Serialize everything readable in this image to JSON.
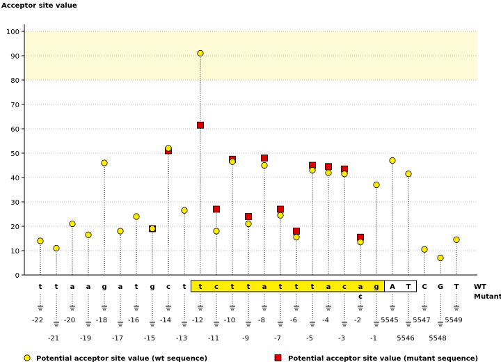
{
  "chart_data": {
    "type": "scatter",
    "ylabel": "Acceptor site value",
    "ylim": [
      0,
      100
    ],
    "yticks": [
      0,
      10,
      20,
      30,
      40,
      50,
      60,
      70,
      80,
      90,
      100
    ],
    "highlight_band": [
      80,
      100
    ],
    "row_labels": {
      "wt": "WT",
      "mutant": "Mutant"
    },
    "positions": [
      {
        "base": "t",
        "index": "-22",
        "wt": 14
      },
      {
        "base": "t",
        "index": "-21",
        "wt": 11
      },
      {
        "base": "a",
        "index": "-20",
        "wt": 21
      },
      {
        "base": "a",
        "index": "-19",
        "wt": 16.5
      },
      {
        "base": "g",
        "index": "-18",
        "wt": 46
      },
      {
        "base": "a",
        "index": "-17",
        "wt": 18
      },
      {
        "base": "t",
        "index": "-16",
        "wt": 24
      },
      {
        "base": "g",
        "index": "-15",
        "wt": 19,
        "mut": 19
      },
      {
        "base": "c",
        "index": "-14",
        "wt": 52,
        "mut": 51
      },
      {
        "base": "t",
        "index": "-13",
        "wt": 26.5
      },
      {
        "base": "t",
        "index": "-12",
        "wt": 91,
        "mut": 61.5,
        "boxed": true
      },
      {
        "base": "c",
        "index": "-11",
        "wt": 18,
        "mut": 27,
        "boxed": true
      },
      {
        "base": "t",
        "index": "-10",
        "wt": 46.5,
        "mut": 47.5,
        "boxed": true
      },
      {
        "base": "t",
        "index": "-9",
        "wt": 21,
        "mut": 24,
        "boxed": true
      },
      {
        "base": "a",
        "index": "-8",
        "wt": 45,
        "mut": 48,
        "boxed": true
      },
      {
        "base": "t",
        "index": "-7",
        "wt": 24.5,
        "mut": 27,
        "boxed": true
      },
      {
        "base": "t",
        "index": "-6",
        "wt": 15.5,
        "mut": 18,
        "boxed": true
      },
      {
        "base": "t",
        "index": "-5",
        "wt": 43,
        "mut": 45,
        "boxed": true
      },
      {
        "base": "a",
        "index": "-4",
        "wt": 42,
        "mut": 44.5,
        "boxed": true
      },
      {
        "base": "c",
        "index": "-3",
        "wt": 41.5,
        "mut": 43.5,
        "boxed": true
      },
      {
        "base": "a",
        "index": "-2",
        "wt": 13.5,
        "mut": 15.5,
        "boxed": true,
        "mutant_base": "c"
      },
      {
        "base": "g",
        "index": "-1",
        "wt": 37,
        "boxed": true
      },
      {
        "base": "A",
        "index": "5545",
        "wt": 47,
        "exon": true
      },
      {
        "base": "T",
        "index": "5546",
        "wt": 41.5,
        "exon": true
      },
      {
        "base": "C",
        "index": "5547",
        "wt": 10.5
      },
      {
        "base": "G",
        "index": "5548",
        "wt": 7
      },
      {
        "base": "T",
        "index": "5549",
        "wt": 14.5
      }
    ],
    "legend": {
      "wt": "Potential acceptor site value (wt sequence)",
      "mutant": "Potential acceptor site value (mutant sequence)"
    },
    "colors": {
      "wt_marker": "#ffee00",
      "mut_marker": "#dd0000",
      "intron_box": "#ffee00",
      "band": "#fffbd6",
      "mutant_text": "#0000cc"
    }
  }
}
